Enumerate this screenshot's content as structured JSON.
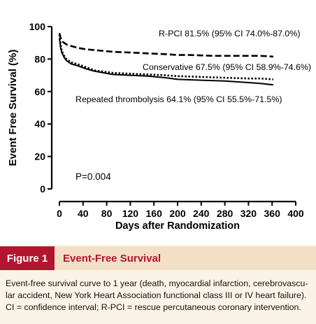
{
  "chart_data": {
    "type": "line",
    "xlabel": "Days after Randomization",
    "ylabel": "Event Free Survival (%)",
    "xlim": [
      0,
      400
    ],
    "ylim": [
      0,
      100
    ],
    "xticks": [
      0,
      40,
      80,
      120,
      160,
      200,
      240,
      280,
      320,
      360,
      400
    ],
    "yticks": [
      0,
      20,
      40,
      60,
      80,
      100
    ],
    "grid": false,
    "series": [
      {
        "name": "R-PCI",
        "label": "R-PCI 81.5% (95% CI 74.0%-87.0%)",
        "style": "dashed",
        "x": [
          0,
          2,
          4,
          8,
          12,
          20,
          30,
          45,
          60,
          90,
          120,
          150,
          180,
          200,
          220,
          260,
          300,
          340,
          362
        ],
        "y": [
          96,
          93,
          91,
          90,
          89,
          88,
          87,
          86,
          85.5,
          84.5,
          84,
          83.5,
          83,
          82.5,
          82.5,
          82,
          82,
          82,
          81.5
        ]
      },
      {
        "name": "Conservative",
        "label": "Conservative 67.5% (95% CI 58.9%-74.6%)",
        "style": "dotted",
        "x": [
          0,
          2,
          4,
          8,
          12,
          20,
          30,
          45,
          60,
          90,
          120,
          150,
          180,
          200,
          240,
          280,
          320,
          340,
          362
        ],
        "y": [
          95,
          89,
          85,
          82,
          80,
          78,
          77,
          75,
          73,
          71.5,
          71,
          70.5,
          70,
          69.5,
          69,
          68.5,
          68,
          68,
          67.5
        ]
      },
      {
        "name": "Repeated thrombolysis",
        "label": "Repeated thrombolysis 64.1% (95% CI 55.5%-71.5%)",
        "style": "solid",
        "x": [
          0,
          2,
          4,
          8,
          12,
          20,
          30,
          45,
          60,
          90,
          120,
          150,
          180,
          200,
          240,
          280,
          320,
          340,
          362
        ],
        "y": [
          93,
          87,
          84,
          81,
          79,
          77,
          76,
          74,
          72.5,
          70.5,
          70,
          69.5,
          68.5,
          67.5,
          67,
          66.5,
          65.5,
          65,
          64.1
        ]
      }
    ],
    "annotations": [
      {
        "text": "P=0.004"
      }
    ]
  },
  "figure": {
    "label": "Figure 1",
    "title": "Event-Free Survival",
    "caption_line1": "Event-free survival curve to 1 year (death, myocardial infarction, cerebrovascu-",
    "caption_line2": "lar accident, New York Heart Association functional class III or IV heart failure).",
    "caption_line3": "CI = confidence interval; R-PCI = rescue percutaneous coronary intervention."
  },
  "colors": {
    "accent": "#b3152e",
    "caption_bg": "#f3dfc6",
    "page_bg": "#fbf3e7"
  }
}
